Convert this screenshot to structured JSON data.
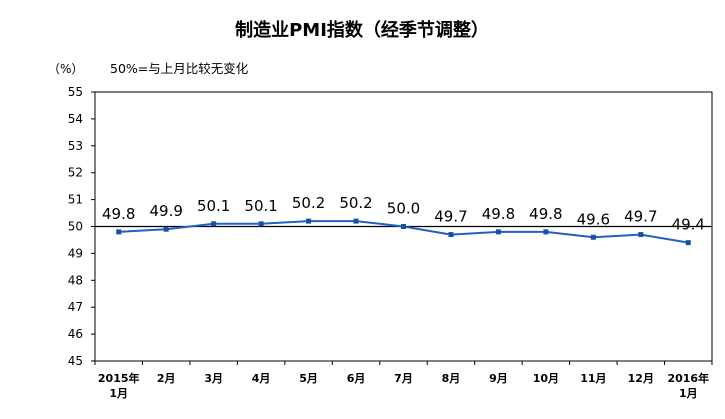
{
  "colors": {
    "line": "#2160c4",
    "marker": "#1b4fa6",
    "reference": "#000000",
    "frame": "#000000"
  },
  "chart_data": {
    "type": "line",
    "title": "制造业PMI指数（经季节调整）",
    "ylabel": "（%）",
    "xlabel": "",
    "annotation": "50%=与上月比较无变化",
    "categories": [
      "2015年\n1月",
      "2月",
      "3月",
      "4月",
      "5月",
      "6月",
      "7月",
      "8月",
      "9月",
      "10月",
      "11月",
      "12月",
      "2016年\n1月"
    ],
    "series": [
      {
        "values": [
          49.8,
          49.9,
          50.1,
          50.1,
          50.2,
          50.2,
          50.0,
          49.7,
          49.8,
          49.8,
          49.6,
          49.7,
          49.4
        ]
      }
    ],
    "ylim": [
      45,
      55
    ],
    "yticks": [
      45,
      46,
      47,
      48,
      49,
      50,
      51,
      52,
      53,
      54,
      55
    ],
    "reference_line": 50,
    "data_labels": true,
    "marker": "square",
    "grid": false,
    "legend": "none"
  }
}
